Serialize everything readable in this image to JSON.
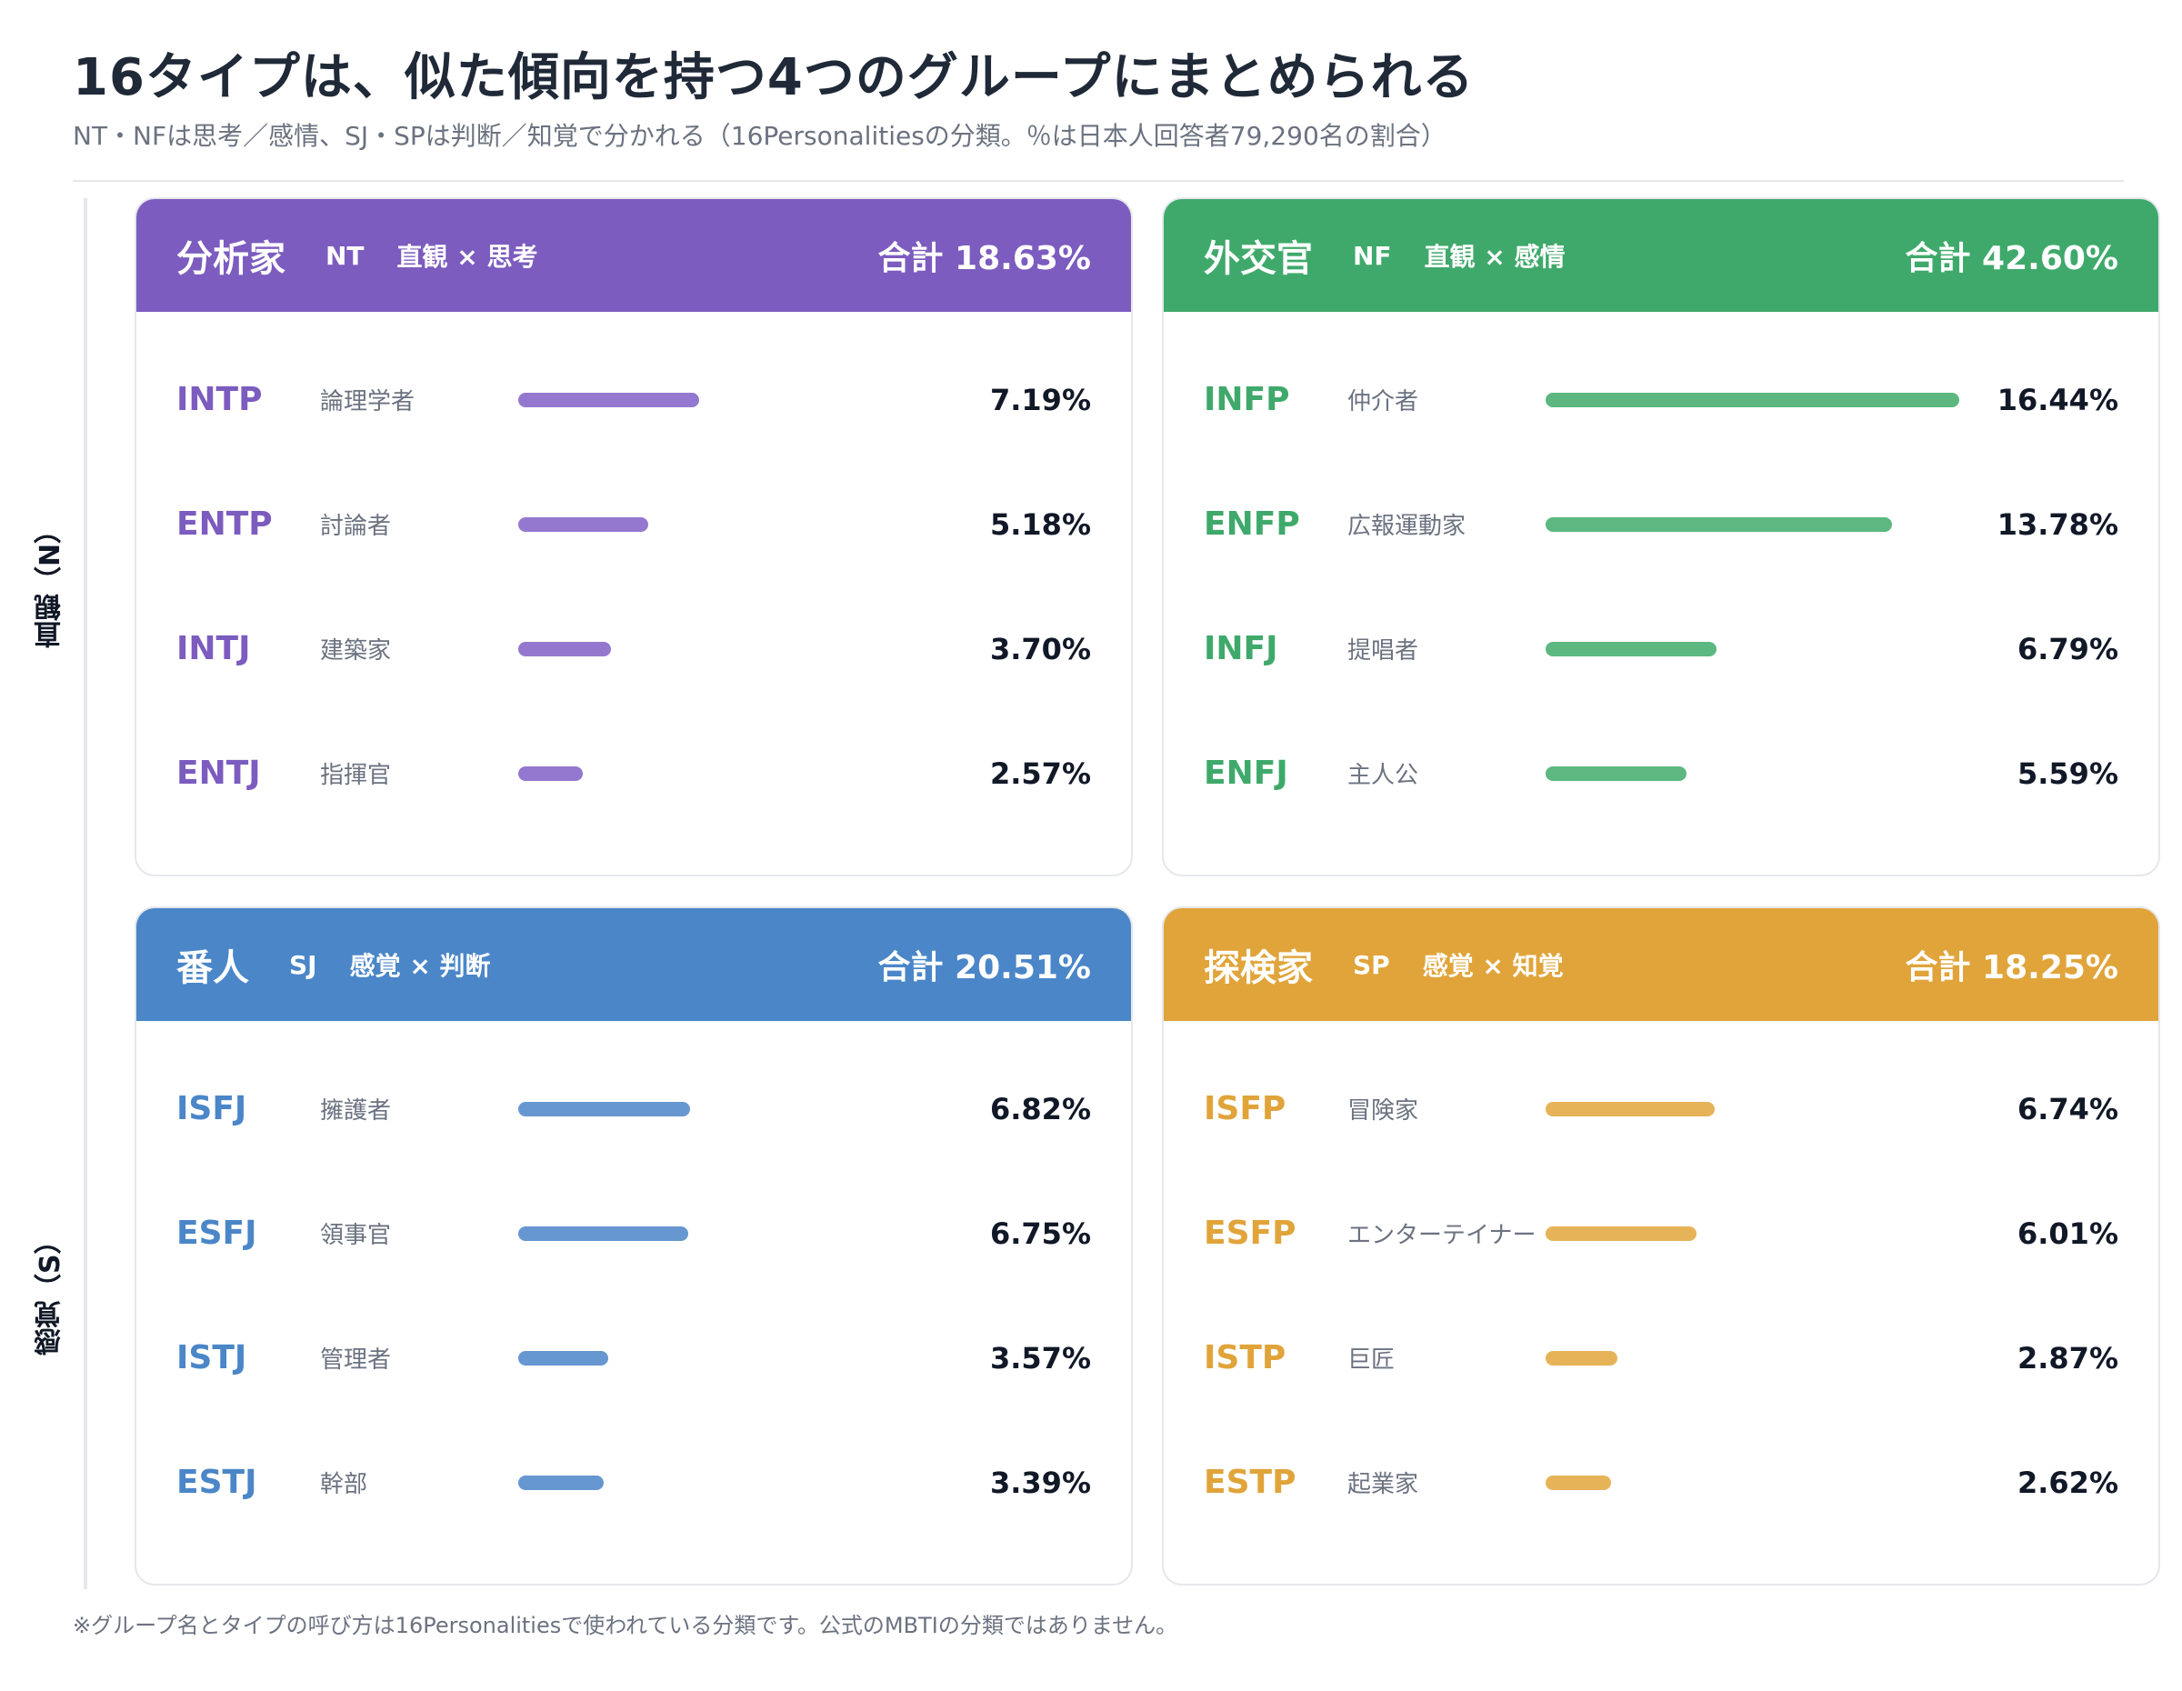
{
  "title": "16タイプは、似た傾向を持つ4つのグループにまとめられる",
  "subtitle": "NT・NFは思考／感情、SJ・SPは判断／知覚で分かれる（16Personalitiesの分類。％は日本人回答者79,290名の割合）",
  "axis_labels": {
    "n": "直観（N）",
    "s": "感覚（S）"
  },
  "footnote": "※グループ名とタイプの呼び方は16Personalitiesで使われている分類です。公式のMBTIの分類ではありません。",
  "chart_data": {
    "type": "bar",
    "unit": "%",
    "scale_max": 17,
    "groups": [
      {
        "name": "分析家",
        "code": "NT",
        "axis": "直観 × 思考",
        "total_label": "合計 18.63%",
        "total": 18.63,
        "header_color": "#7c5cbf",
        "accent_color": "#7c5cbf",
        "bar_color": "#9478cf",
        "types": [
          {
            "code": "INTP",
            "name": "論理学者",
            "value": 7.19,
            "label": "7.19%"
          },
          {
            "code": "ENTP",
            "name": "討論者",
            "value": 5.18,
            "label": "5.18%"
          },
          {
            "code": "INTJ",
            "name": "建築家",
            "value": 3.7,
            "label": "3.70%"
          },
          {
            "code": "ENTJ",
            "name": "指揮官",
            "value": 2.57,
            "label": "2.57%"
          }
        ]
      },
      {
        "name": "外交官",
        "code": "NF",
        "axis": "直観 × 感情",
        "total_label": "合計 42.60%",
        "total": 42.6,
        "header_color": "#3fa96b",
        "accent_color": "#3fa96b",
        "bar_color": "#5cb880",
        "types": [
          {
            "code": "INFP",
            "name": "仲介者",
            "value": 16.44,
            "label": "16.44%"
          },
          {
            "code": "ENFP",
            "name": "広報運動家",
            "value": 13.78,
            "label": "13.78%"
          },
          {
            "code": "INFJ",
            "name": "提唱者",
            "value": 6.79,
            "label": "6.79%"
          },
          {
            "code": "ENFJ",
            "name": "主人公",
            "value": 5.59,
            "label": "5.59%"
          }
        ]
      },
      {
        "name": "番人",
        "code": "SJ",
        "axis": "感覚 × 判断",
        "total_label": "合計 20.51%",
        "total": 20.51,
        "header_color": "#4a86c8",
        "accent_color": "#4a86c8",
        "bar_color": "#6797d0",
        "types": [
          {
            "code": "ISFJ",
            "name": "擁護者",
            "value": 6.82,
            "label": "6.82%"
          },
          {
            "code": "ESFJ",
            "name": "領事官",
            "value": 6.75,
            "label": "6.75%"
          },
          {
            "code": "ISTJ",
            "name": "管理者",
            "value": 3.57,
            "label": "3.57%"
          },
          {
            "code": "ESTJ",
            "name": "幹部",
            "value": 3.39,
            "label": "3.39%"
          }
        ]
      },
      {
        "name": "探検家",
        "code": "SP",
        "axis": "感覚 × 知覚",
        "total_label": "合計 18.25%",
        "total": 18.25,
        "header_color": "#e0a43a",
        "accent_color": "#e0a43a",
        "bar_color": "#e6b358",
        "types": [
          {
            "code": "ISFP",
            "name": "冒険家",
            "value": 6.74,
            "label": "6.74%"
          },
          {
            "code": "ESFP",
            "name": "エンターテイナー",
            "value": 6.01,
            "label": "6.01%"
          },
          {
            "code": "ISTP",
            "name": "巨匠",
            "value": 2.87,
            "label": "2.87%"
          },
          {
            "code": "ESTP",
            "name": "起業家",
            "value": 2.62,
            "label": "2.62%"
          }
        ]
      }
    ]
  }
}
